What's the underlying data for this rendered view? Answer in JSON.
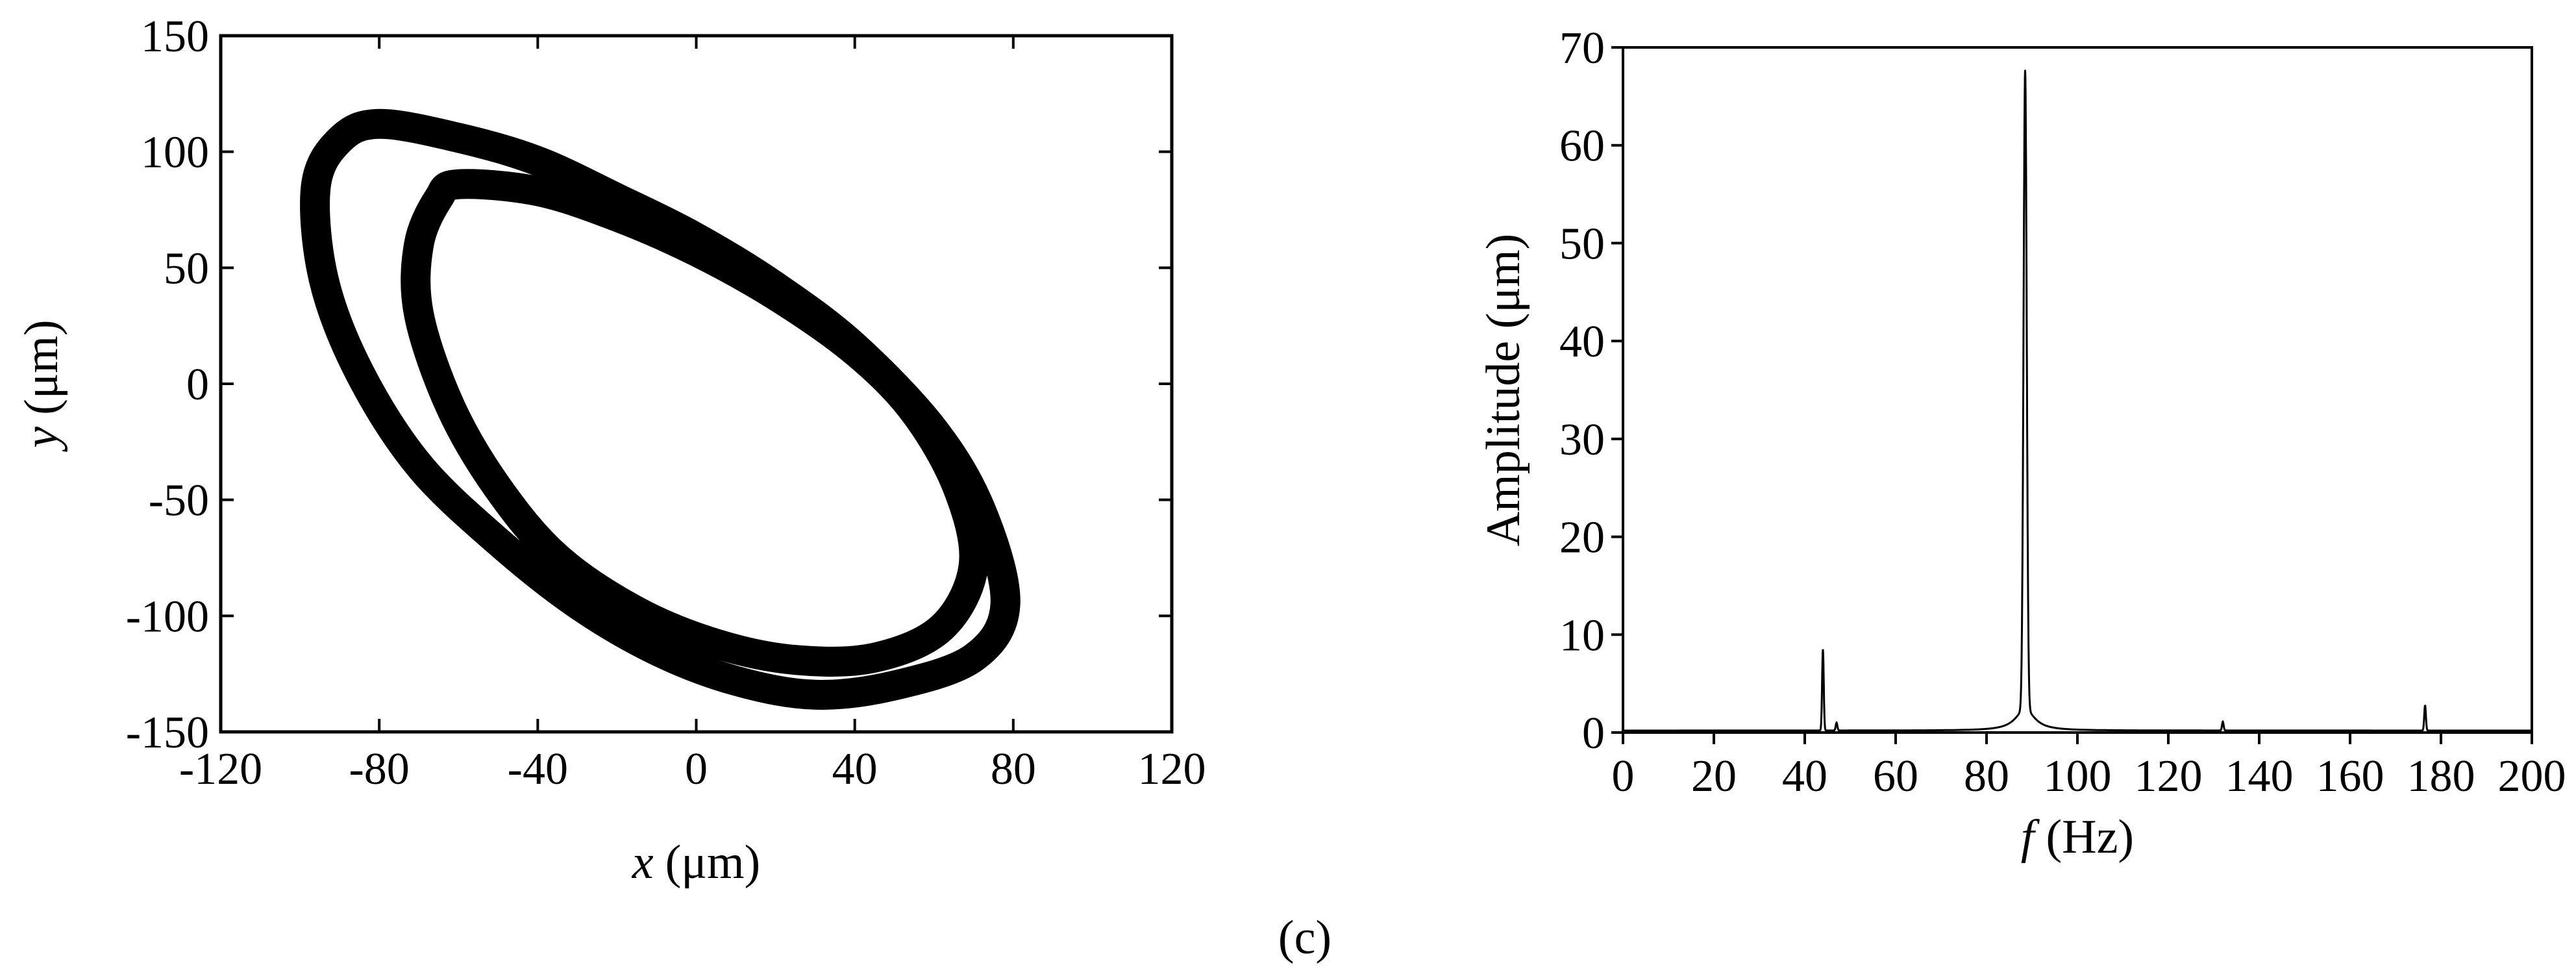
{
  "caption": "(c)",
  "chart_data": [
    {
      "type": "scatter",
      "title": "",
      "xlabel": {
        "symbol": "x",
        "unit": "(μm)"
      },
      "ylabel": {
        "symbol": "y",
        "unit": "(μm)"
      },
      "xlim": [
        -120,
        120
      ],
      "ylim": [
        -150,
        150
      ],
      "xticks": [
        "-120",
        "-80",
        "-40",
        "0",
        "40",
        "80",
        "120"
      ],
      "yticks": [
        "150",
        "100",
        "50",
        "0",
        "-50",
        "-100",
        "-150"
      ],
      "grid": false,
      "line_color": "#000000",
      "series": [
        {
          "shape": "orbit-outer",
          "points": [
            [
              -80,
              112
            ],
            [
              -60,
              106
            ],
            [
              -40,
              96
            ],
            [
              -20,
              80
            ],
            [
              0,
              63
            ],
            [
              20,
              42
            ],
            [
              40,
              16
            ],
            [
              60,
              -20
            ],
            [
              72,
              -55
            ],
            [
              78,
              -95
            ],
            [
              70,
              -118
            ],
            [
              50,
              -130
            ],
            [
              30,
              -134
            ],
            [
              10,
              -128
            ],
            [
              -10,
              -115
            ],
            [
              -30,
              -95
            ],
            [
              -50,
              -68
            ],
            [
              -70,
              -35
            ],
            [
              -85,
              5
            ],
            [
              -94,
              45
            ],
            [
              -96,
              85
            ],
            [
              -90,
              105
            ],
            [
              -80,
              112
            ]
          ]
        },
        {
          "shape": "orbit-inner",
          "points": [
            [
              -60,
              86
            ],
            [
              -40,
              83
            ],
            [
              -20,
              72
            ],
            [
              0,
              57
            ],
            [
              20,
              38
            ],
            [
              40,
              14
            ],
            [
              55,
              -12
            ],
            [
              66,
              -45
            ],
            [
              70,
              -78
            ],
            [
              62,
              -105
            ],
            [
              45,
              -118
            ],
            [
              25,
              -119
            ],
            [
              5,
              -112
            ],
            [
              -15,
              -98
            ],
            [
              -35,
              -75
            ],
            [
              -50,
              -45
            ],
            [
              -62,
              -10
            ],
            [
              -70,
              30
            ],
            [
              -70,
              60
            ],
            [
              -65,
              80
            ],
            [
              -60,
              86
            ]
          ]
        }
      ]
    },
    {
      "type": "line",
      "title": "",
      "xlabel": {
        "symbol": "f",
        "unit": "(Hz)"
      },
      "ylabel": {
        "text": "Amplitude (μm)"
      },
      "xlim": [
        0,
        200
      ],
      "ylim": [
        0,
        70
      ],
      "xticks": [
        "0",
        "20",
        "40",
        "60",
        "80",
        "100",
        "120",
        "140",
        "160",
        "180",
        "200"
      ],
      "yticks": [
        "0",
        "10",
        "20",
        "30",
        "40",
        "50",
        "60",
        "70"
      ],
      "grid": false,
      "line_color": "#000000",
      "baseline": 0.2,
      "peaks": [
        {
          "f": 44,
          "amplitude": 8.3
        },
        {
          "f": 47,
          "amplitude": 0.8
        },
        {
          "f": 88.5,
          "amplitude": 65.3
        },
        {
          "f": 132,
          "amplitude": 0.9
        },
        {
          "f": 176.5,
          "amplitude": 2.6
        }
      ]
    }
  ]
}
